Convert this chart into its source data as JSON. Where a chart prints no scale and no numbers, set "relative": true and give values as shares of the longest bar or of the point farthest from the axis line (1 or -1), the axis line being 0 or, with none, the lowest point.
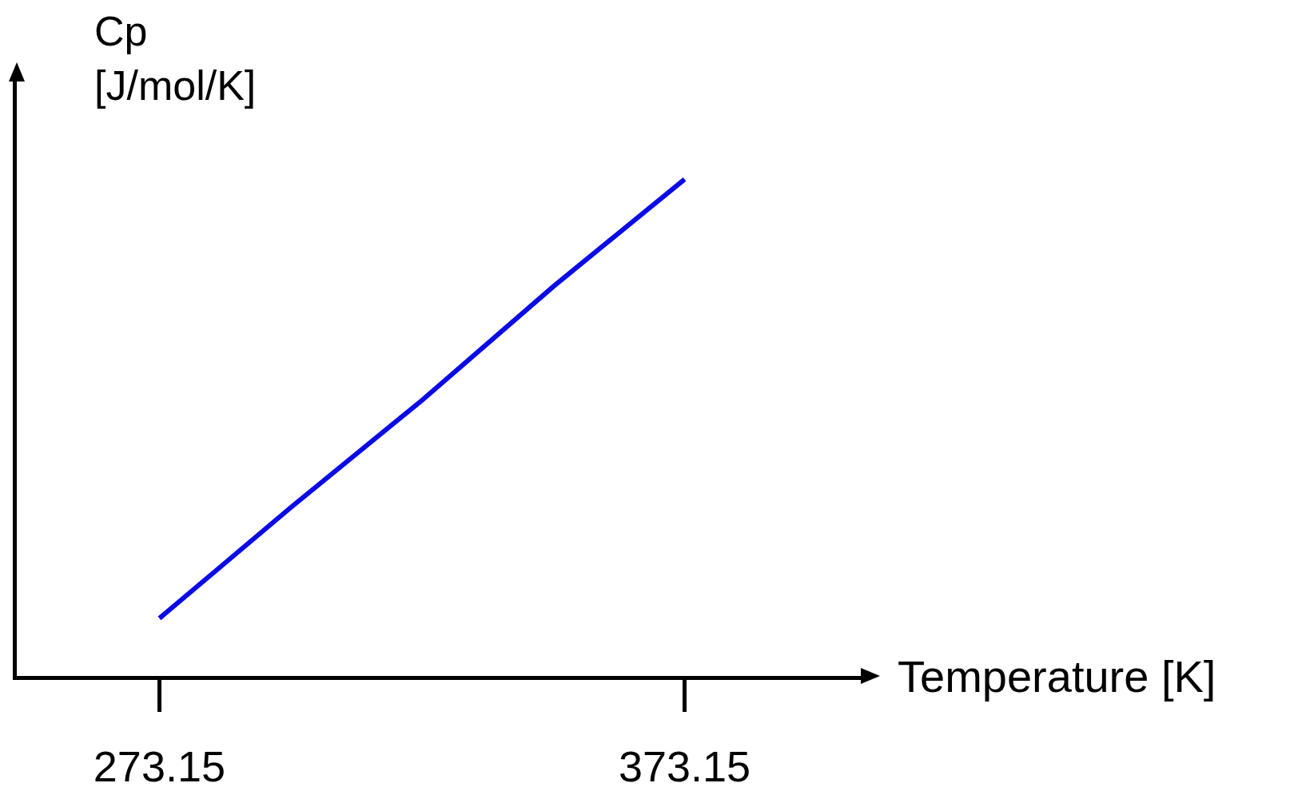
{
  "chart_data": {
    "type": "line",
    "relative": true,
    "xlabel": "Temperature [K]",
    "ylabel": "Cp\n[J/mol/K]",
    "x": [
      273.15,
      298.15,
      323.15,
      348.15,
      373.15
    ],
    "xlim": [
      246,
      407
    ],
    "xticks": [
      273.15,
      373.15
    ],
    "grid": false,
    "marker": "none",
    "line_style": "solid",
    "series": [
      {
        "color": "#0a0ae6",
        "values": [
          0.116,
          0.339,
          0.555,
          0.784,
          1
        ]
      }
    ]
  }
}
